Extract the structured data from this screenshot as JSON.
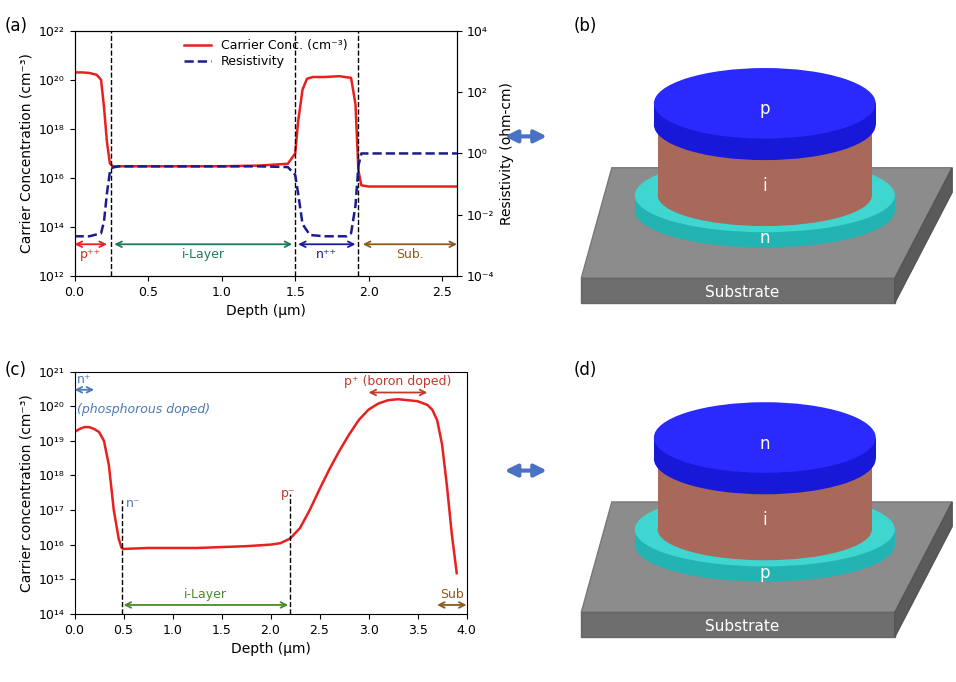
{
  "chart_data": [
    {
      "panel": "(a)",
      "type": "line",
      "x_label": "Depth (μm)",
      "y_label": "Carrier Concentration (cm⁻³)",
      "y2_label": "Resistivity (ohm-cm)",
      "log": "y",
      "legend": "upper center",
      "xlim": [
        0.0,
        2.6
      ],
      "xticks": [
        0.0,
        0.5,
        1.0,
        1.5,
        2.0,
        2.5
      ],
      "ylim": [
        1000000000000.0,
        1e+22
      ],
      "yticks": [
        {
          "value": 1000000000000.0,
          "label": "10¹²"
        },
        {
          "value": 100000000000000.0,
          "label": "10¹⁴"
        },
        {
          "value": 1e+16,
          "label": "10¹⁶"
        },
        {
          "value": 1e+18,
          "label": "10¹⁸"
        },
        {
          "value": 1e+20,
          "label": "10²⁰"
        },
        {
          "value": 1e+22,
          "label": "10²²"
        }
      ],
      "y2lim": [
        0.0001,
        10000.0
      ],
      "y2ticks": [
        {
          "value": 0.0001,
          "label": "10⁻⁴"
        },
        {
          "value": 0.01,
          "label": "10⁻²"
        },
        {
          "value": 1,
          "label": "10⁰"
        },
        {
          "value": 100.0,
          "label": "10²"
        },
        {
          "value": 10000.0,
          "label": "10⁴"
        }
      ],
      "series": [
        {
          "name": "Carrier Conc. (cm⁻³)",
          "color": "#e8201f",
          "line_style": "solid",
          "x": [
            0,
            0.05,
            0.1,
            0.15,
            0.18,
            0.2,
            0.22,
            0.24,
            0.26,
            0.3,
            0.5,
            0.75,
            1.0,
            1.25,
            1.45,
            1.5,
            1.52,
            1.55,
            1.58,
            1.62,
            1.7,
            1.8,
            1.88,
            1.91,
            1.93,
            1.95,
            2.0,
            2.2,
            2.4,
            2.6
          ],
          "values": [
            2e+20,
            2e+20,
            1.9e+20,
            1.6e+20,
            1e+20,
            8e+18,
            3e+17,
            4e+16,
            3e+16,
            3e+16,
            3e+16,
            3e+16,
            3e+16,
            3.2e+16,
            3.8e+16,
            1e+17,
            2e+18,
            4e+19,
            1.1e+20,
            1.3e+20,
            1.3e+20,
            1.4e+20,
            1.2e+20,
            1e+19,
            2e+16,
            5000000000000000.0,
            4500000000000000.0,
            4500000000000000.0,
            4500000000000000.0,
            4500000000000000.0
          ]
        },
        {
          "name": "Resistivity",
          "color": "#1c1c8c",
          "line_style": "dashed",
          "axis": "y2",
          "x": [
            0,
            0.1,
            0.18,
            0.2,
            0.22,
            0.24,
            0.26,
            0.3,
            0.75,
            1.25,
            1.45,
            1.5,
            1.52,
            1.55,
            1.6,
            1.7,
            1.85,
            1.88,
            1.91,
            1.93,
            1.95,
            2.0,
            2.3,
            2.6
          ],
          "values": [
            0.002,
            0.002,
            0.0025,
            0.006,
            0.05,
            0.25,
            0.35,
            0.38,
            0.38,
            0.38,
            0.36,
            0.2,
            0.05,
            0.005,
            0.0022,
            0.002,
            0.002,
            0.0025,
            0.02,
            0.4,
            1.0,
            1.0,
            1.0,
            1.0
          ]
        }
      ],
      "regions": [
        {
          "label": "p⁺⁺",
          "start": 0.0,
          "end": 0.22,
          "y": 20000000000000.0,
          "color": "#e8201f"
        },
        {
          "label": "i-Layer",
          "start": 0.27,
          "end": 1.48,
          "y": 20000000000000.0,
          "color": "#1f7a5a"
        },
        {
          "label": "n⁺⁺",
          "start": 1.52,
          "end": 1.91,
          "y": 20000000000000.0,
          "color": "#1a1aa6"
        },
        {
          "label": "Sub.",
          "start": 1.96,
          "end": 2.6,
          "y": 20000000000000.0,
          "color": "#8b5a1a"
        }
      ],
      "vlines": [
        {
          "x": 0.25,
          "y_top": 1e+22
        },
        {
          "x": 1.5,
          "y_top": 1e+22
        },
        {
          "x": 1.93,
          "y_top": 1e+22
        }
      ],
      "annotations": []
    },
    {
      "panel": "(c)",
      "type": "line",
      "x_label": "Depth (μm)",
      "y_label": "Carrier concentration (cm⁻³)",
      "log": "y",
      "xlim": [
        0.0,
        4.0
      ],
      "xticks": [
        0.0,
        0.5,
        1.0,
        1.5,
        2.0,
        2.5,
        3.0,
        3.5,
        4.0
      ],
      "ylim": [
        100000000000000.0,
        1e+21
      ],
      "yticks": [
        {
          "value": 100000000000000.0,
          "label": "10¹⁴"
        },
        {
          "value": 1000000000000000.0,
          "label": "10¹⁵"
        },
        {
          "value": 1e+16,
          "label": "10¹⁶"
        },
        {
          "value": 1e+17,
          "label": "10¹⁷"
        },
        {
          "value": 1e+18,
          "label": "10¹⁸"
        },
        {
          "value": 1e+19,
          "label": "10¹⁹"
        },
        {
          "value": 1e+20,
          "label": "10²⁰"
        },
        {
          "value": 1e+21,
          "label": "10²¹"
        }
      ],
      "series": [
        {
          "color": "#e8201f",
          "line_style": "solid",
          "x": [
            0,
            0.05,
            0.1,
            0.15,
            0.2,
            0.25,
            0.3,
            0.35,
            0.4,
            0.45,
            0.48,
            0.5,
            0.75,
            1.0,
            1.25,
            1.5,
            1.75,
            2.0,
            2.1,
            2.2,
            2.3,
            2.4,
            2.5,
            2.6,
            2.7,
            2.8,
            2.9,
            3.0,
            3.1,
            3.2,
            3.3,
            3.4,
            3.5,
            3.6,
            3.65,
            3.7,
            3.75,
            3.8,
            3.85,
            3.9
          ],
          "values": [
            1.8e+19,
            2.2e+19,
            2.5e+19,
            2.5e+19,
            2.2e+19,
            1.8e+19,
            1e+19,
            2e+18,
            1e+17,
            1.5e+16,
            8000000000000000.0,
            7500000000000000.0,
            8000000000000000.0,
            8000000000000000.0,
            8000000000000000.0,
            8500000000000000.0,
            9000000000000000.0,
            1e+16,
            1.1e+16,
            1.5e+16,
            3e+16,
            1e+17,
            4e+17,
            1.5e+18,
            5e+18,
            1.5e+19,
            4e+19,
            8e+19,
            1.2e+20,
            1.5e+20,
            1.6e+20,
            1.5e+20,
            1.4e+20,
            1.1e+20,
            8e+19,
            4e+19,
            8e+18,
            5e+17,
            2e+16,
            1500000000000000.0
          ]
        }
      ],
      "regions": [
        {
          "label": "n⁺",
          "start": 0.0,
          "end": 0.2,
          "y": 3e+20,
          "color": "#4a7ab8"
        },
        {
          "label": "p⁺ (boron doped)",
          "start": 3.0,
          "end": 3.6,
          "y": 2.5e+20,
          "color": "#c0392b"
        },
        {
          "label": "i-Layer",
          "start": 0.5,
          "end": 2.18,
          "y": 180000000000000.0,
          "color": "#4a8a2a"
        },
        {
          "label": "Sub",
          "start": 3.7,
          "end": 4.0,
          "y": 180000000000000.0,
          "color": "#8b5a1a"
        }
      ],
      "vlines": [
        {
          "x": 0.48,
          "y_top": 2e+17
        },
        {
          "x": 2.2,
          "y_top": 3e+17
        }
      ],
      "annotations": [
        {
          "text": "(phosphorous doped)",
          "x": 0.02,
          "y": 8e+19,
          "color": "#4a7ab8"
        },
        {
          "text": "n⁻",
          "x": 0.52,
          "y": 1.5e+17,
          "color": "#4a7ab8"
        },
        {
          "text": "p⁻",
          "x": 2.25,
          "y": 3e+17,
          "color": "#c0392b"
        }
      ]
    }
  ],
  "diagrams": [
    {
      "panel": "(b)",
      "layers": [
        "p",
        "i",
        "n"
      ],
      "substrate": "Substrate"
    },
    {
      "panel": "(d)",
      "layers": [
        "n",
        "i",
        "p"
      ],
      "substrate": "Substrate"
    }
  ]
}
